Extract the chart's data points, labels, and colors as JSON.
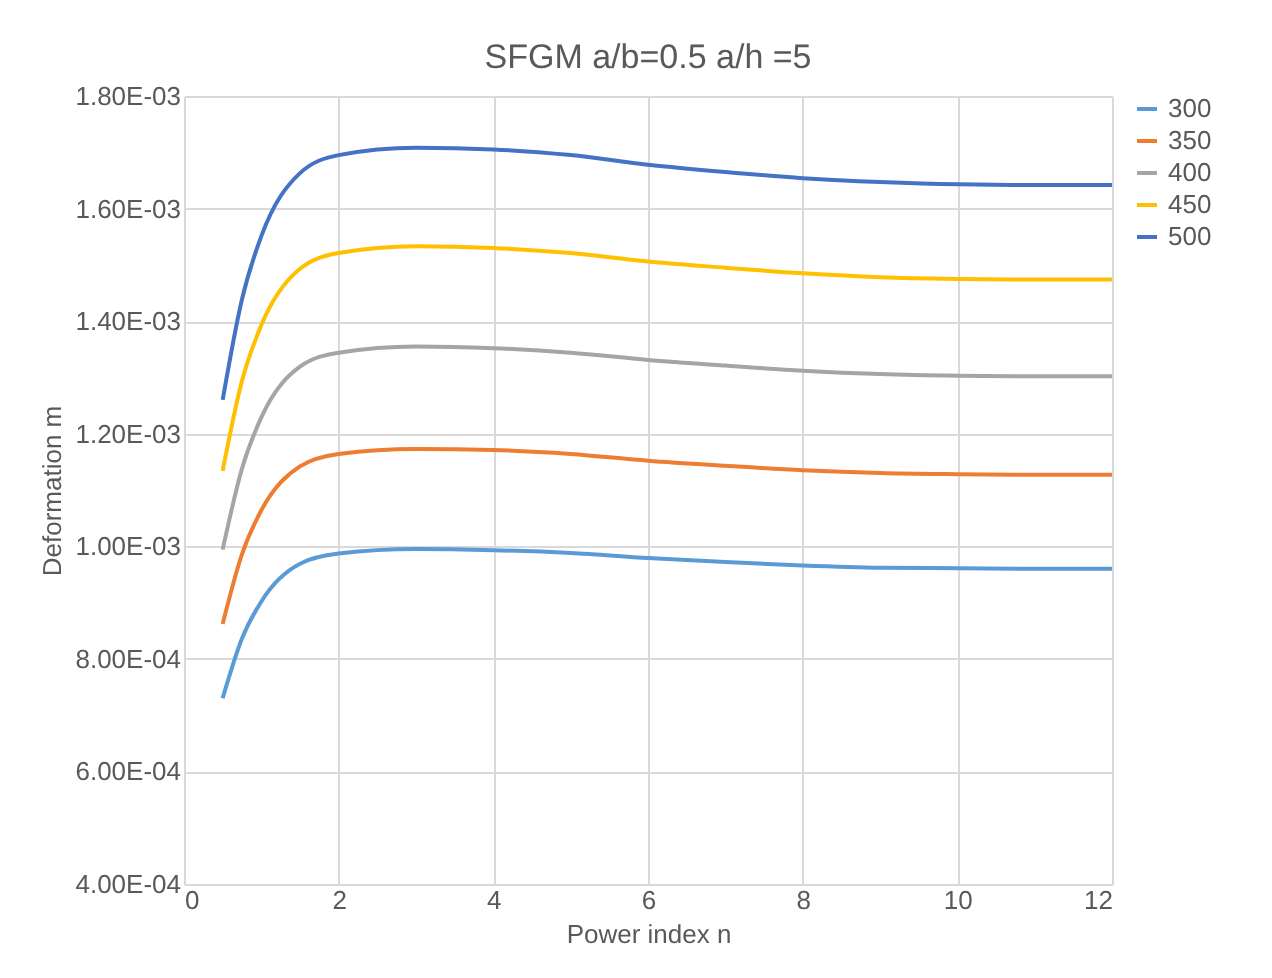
{
  "chart_data": {
    "type": "line",
    "title": "SFGM a/b=0.5 a/h =5",
    "xlabel": "Power index n",
    "ylabel": "Deformation m",
    "x": [
      0.5,
      0.75,
      1,
      1.5,
      2,
      3,
      4,
      5,
      6,
      7,
      8,
      9,
      10,
      11,
      12
    ],
    "series": [
      {
        "name": "300",
        "color": "#5b9bd5",
        "values": [
          0.00073,
          0.000836,
          0.000902,
          0.000969,
          0.000987,
          0.000995,
          0.000993,
          0.000988,
          0.000979,
          0.000972,
          0.000966,
          0.000962,
          0.000961,
          0.00096,
          0.00096
        ]
      },
      {
        "name": "350",
        "color": "#ed7d31",
        "values": [
          0.000862,
          0.000986,
          0.001064,
          0.001142,
          0.001164,
          0.001173,
          0.001171,
          0.001164,
          0.001152,
          0.001143,
          0.001135,
          0.00113,
          0.001128,
          0.001127,
          0.001127
        ]
      },
      {
        "name": "400",
        "color": "#a5a5a5",
        "values": [
          0.000994,
          0.001138,
          0.001229,
          0.001319,
          0.001344,
          0.001355,
          0.001352,
          0.001344,
          0.001331,
          0.001321,
          0.001312,
          0.001306,
          0.001303,
          0.001302,
          0.001302
        ]
      },
      {
        "name": "450",
        "color": "#ffc000",
        "values": [
          0.001134,
          0.001294,
          0.001393,
          0.001493,
          0.001521,
          0.001533,
          0.00153,
          0.001521,
          0.001506,
          0.001495,
          0.001485,
          0.001478,
          0.001475,
          0.001474,
          0.001474
        ]
      },
      {
        "name": "500",
        "color": "#4472c4",
        "values": [
          0.00126,
          0.001439,
          0.001551,
          0.001663,
          0.001695,
          0.001708,
          0.001705,
          0.001695,
          0.001678,
          0.001665,
          0.001654,
          0.001647,
          0.001643,
          0.001642,
          0.001642
        ]
      }
    ],
    "xlim": [
      0,
      12
    ],
    "xticks": [
      0,
      2,
      4,
      6,
      8,
      10,
      12
    ],
    "ylim": [
      0.0004,
      0.0018
    ],
    "yticks": [
      {
        "value": 0.0004,
        "label": "4.00E-04"
      },
      {
        "value": 0.0006,
        "label": "6.00E-04"
      },
      {
        "value": 0.0008,
        "label": "8.00E-04"
      },
      {
        "value": 0.001,
        "label": "1.00E-03"
      },
      {
        "value": 0.0012,
        "label": "1.20E-03"
      },
      {
        "value": 0.0014,
        "label": "1.40E-03"
      },
      {
        "value": 0.0016,
        "label": "1.60E-03"
      },
      {
        "value": 0.0018,
        "label": "1.80E-03"
      }
    ],
    "grid": true,
    "legend": "right",
    "marker": "none",
    "line_style": "solid"
  }
}
